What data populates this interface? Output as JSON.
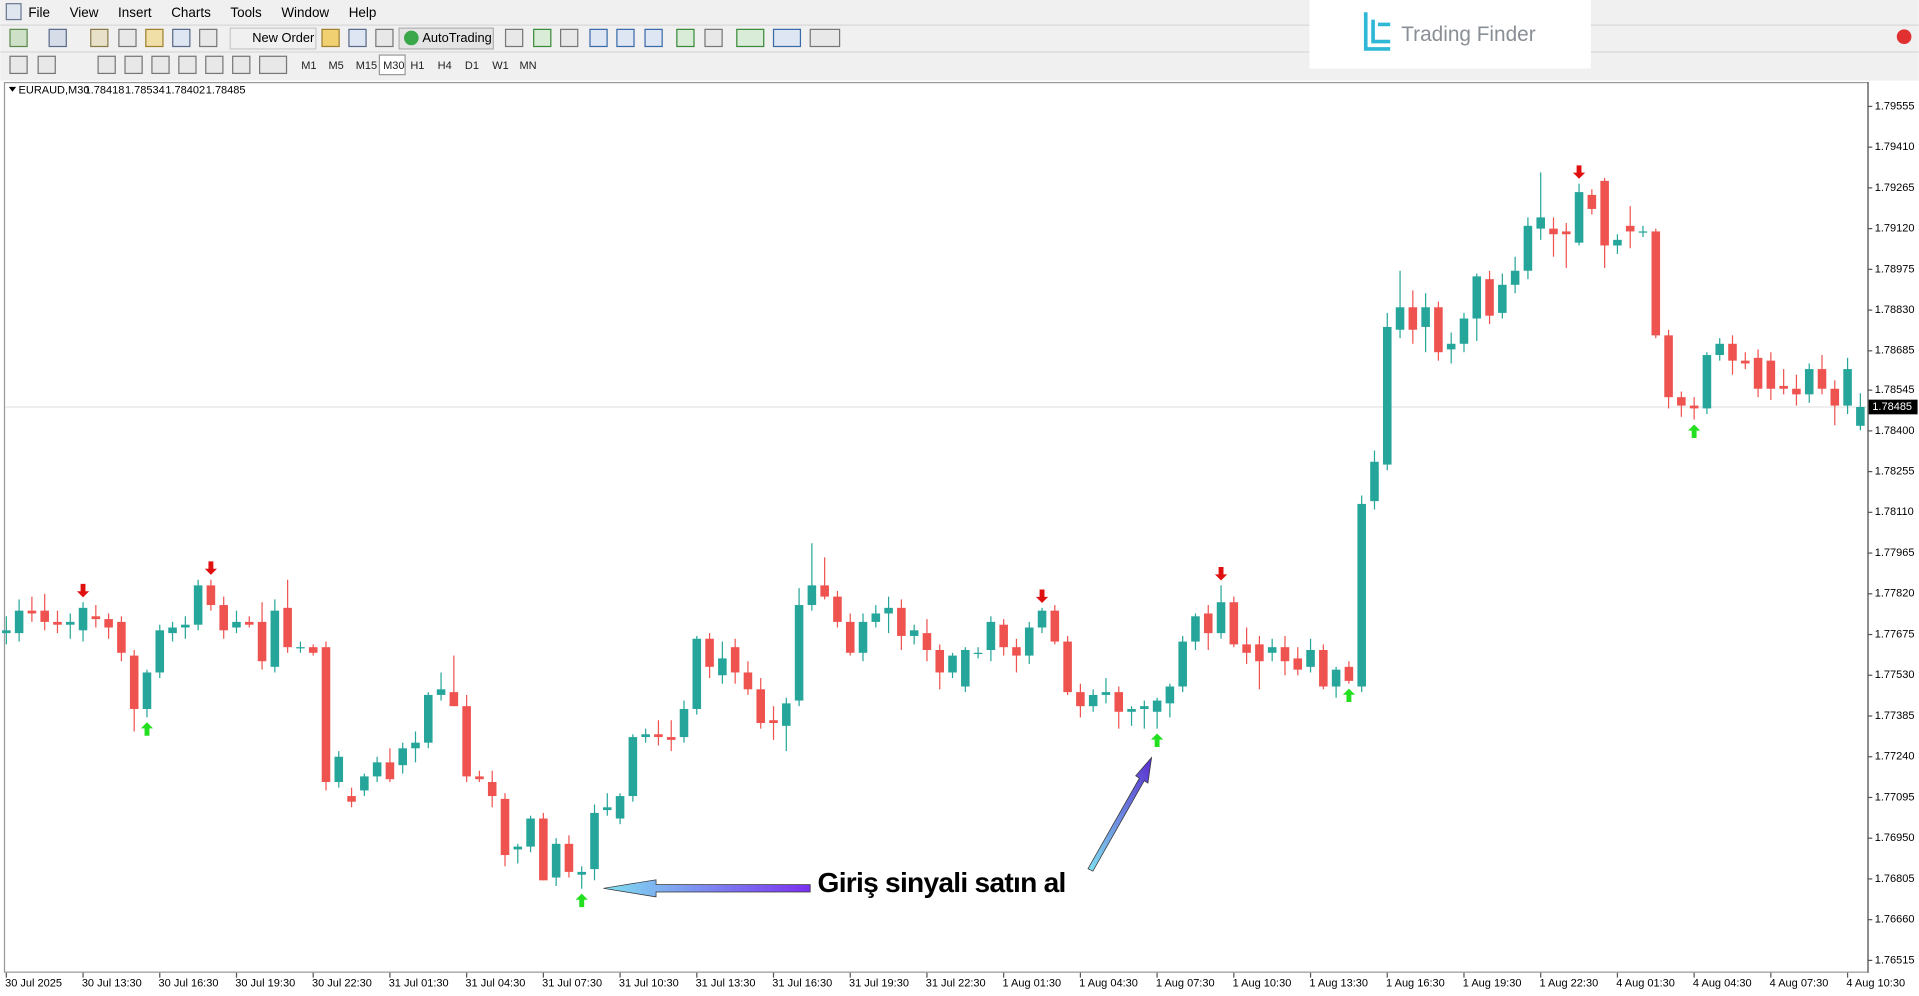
{
  "menu": [
    "File",
    "View",
    "Insert",
    "Charts",
    "Tools",
    "Window",
    "Help"
  ],
  "toolbar": {
    "buttons": [
      "New Order",
      "AutoTrading"
    ],
    "timeframes": [
      "M1",
      "M5",
      "M15",
      "M30",
      "H1",
      "H4",
      "D1",
      "W1",
      "MN"
    ]
  },
  "logo": "Trading Finder",
  "chart_data": {
    "type": "candlestick",
    "title": "EURAUD,M30",
    "annotation": "Giriş sinyali satın al",
    "up_color": "#26a69a",
    "down_color": "#ef5350",
    "buy_color": "#22e01f",
    "sell_color": "#e01010",
    "ylim": [
      1.76471,
      1.79642
    ],
    "yticks": [
      1.79555,
      {
        "value": 1.7941,
        "label": "1.79410"
      },
      1.79265,
      {
        "value": 1.7912,
        "label": "1.79120"
      },
      1.78975,
      {
        "value": 1.7883,
        "label": "1.78830"
      },
      1.78685,
      1.78545,
      {
        "value": 1.784,
        "label": "1.78400"
      },
      1.78255,
      {
        "value": 1.7811,
        "label": "1.78110"
      },
      1.77965,
      {
        "value": 1.7782,
        "label": "1.77820"
      },
      1.77675,
      {
        "value": 1.7753,
        "label": "1.77530"
      },
      1.77385,
      {
        "value": 1.7724,
        "label": "1.77240"
      },
      1.77095,
      {
        "value": 1.7695,
        "label": "1.76950"
      },
      1.76805,
      {
        "value": 1.7666,
        "label": "1.76660"
      },
      1.76515
    ],
    "categories": [
      "30 Jul 2025",
      null,
      null,
      null,
      null,
      null,
      "30 Jul 13:30",
      null,
      null,
      null,
      null,
      null,
      "30 Jul 16:30",
      null,
      null,
      null,
      null,
      null,
      "30 Jul 19:30",
      null,
      null,
      null,
      null,
      null,
      "30 Jul 22:30",
      null,
      null,
      null,
      null,
      null,
      "31 Jul 01:30",
      null,
      null,
      null,
      null,
      null,
      "31 Jul 04:30",
      null,
      null,
      null,
      null,
      null,
      "31 Jul 07:30",
      null,
      null,
      null,
      null,
      null,
      "31 Jul 10:30",
      null,
      null,
      null,
      null,
      null,
      "31 Jul 13:30",
      null,
      null,
      null,
      null,
      null,
      "31 Jul 16:30",
      null,
      null,
      null,
      null,
      null,
      "31 Jul 19:30",
      null,
      null,
      null,
      null,
      null,
      "31 Jul 22:30",
      null,
      null,
      null,
      null,
      null,
      "1 Aug 01:30",
      null,
      null,
      null,
      null,
      null,
      "1 Aug 04:30",
      null,
      null,
      null,
      null,
      null,
      "1 Aug 07:30",
      null,
      null,
      null,
      null,
      null,
      "1 Aug 10:30",
      null,
      null,
      null,
      null,
      null,
      "1 Aug 13:30",
      null,
      null,
      null,
      null,
      null,
      "1 Aug 16:30",
      null,
      null,
      null,
      null,
      null,
      "1 Aug 19:30",
      null,
      null,
      null,
      null,
      null,
      "1 Aug 22:30",
      null,
      null,
      null,
      null,
      null,
      "4 Aug 01:30",
      null,
      null,
      null,
      null,
      null,
      "4 Aug 04:30",
      null,
      null,
      null,
      null,
      null,
      "4 Aug 07:30",
      null,
      null,
      null,
      null,
      null,
      "4 Aug 10:30",
      null
    ],
    "ohlc": [
      [
        1.7768,
        1.7774,
        1.7764,
        1.7769
      ],
      [
        1.7768,
        1.778,
        1.7765,
        1.7776
      ],
      [
        1.7776,
        1.7781,
        1.7772,
        1.7775
      ],
      [
        1.7776,
        1.7782,
        1.7769,
        1.7772
      ],
      [
        1.7772,
        1.7776,
        1.7768,
        1.7771
      ],
      [
        1.7771,
        1.7775,
        1.7766,
        1.7772
      ],
      [
        1.7769,
        1.7779,
        1.7765,
        1.7777
      ],
      [
        1.7774,
        1.7778,
        1.777,
        1.7773
      ],
      [
        1.7773,
        1.7775,
        1.7766,
        1.777
      ],
      [
        1.7772,
        1.7774,
        1.7758,
        1.7761
      ],
      [
        1.776,
        1.7762,
        1.7733,
        1.7741
      ],
      [
        1.7741,
        1.7755,
        1.7738,
        1.7754
      ],
      [
        1.7754,
        1.7771,
        1.7752,
        1.7769
      ],
      [
        1.7768,
        1.7772,
        1.7765,
        1.777
      ],
      [
        1.777,
        1.7774,
        1.7766,
        1.7771
      ],
      [
        1.7771,
        1.7787,
        1.7769,
        1.7785
      ],
      [
        1.7785,
        1.7787,
        1.7776,
        1.7778
      ],
      [
        1.7778,
        1.7781,
        1.7766,
        1.7769
      ],
      [
        1.777,
        1.7776,
        1.7768,
        1.7772
      ],
      [
        1.7772,
        1.7774,
        1.777,
        1.7771
      ],
      [
        1.7772,
        1.7779,
        1.7755,
        1.7758
      ],
      [
        1.7756,
        1.778,
        1.7754,
        1.7776
      ],
      [
        1.7777,
        1.7787,
        1.7761,
        1.7763
      ],
      [
        1.7763,
        1.7765,
        1.7761,
        1.7763
      ],
      [
        1.7763,
        1.7764,
        1.776,
        1.7761
      ],
      [
        1.7763,
        1.7765,
        1.7712,
        1.7715
      ],
      [
        1.7715,
        1.7726,
        1.7713,
        1.7724
      ],
      [
        1.771,
        1.7713,
        1.7706,
        1.7708
      ],
      [
        1.7712,
        1.7718,
        1.771,
        1.7717
      ],
      [
        1.7717,
        1.7724,
        1.7715,
        1.7722
      ],
      [
        1.7722,
        1.7727,
        1.7715,
        1.7716
      ],
      [
        1.7721,
        1.7729,
        1.7718,
        1.7727
      ],
      [
        1.7727,
        1.7733,
        1.7722,
        1.7729
      ],
      [
        1.7729,
        1.7747,
        1.7727,
        1.7746
      ],
      [
        1.7746,
        1.7754,
        1.7744,
        1.7748
      ],
      [
        1.7747,
        1.776,
        1.7742,
        1.7742
      ],
      [
        1.7742,
        1.7746,
        1.7715,
        1.7717
      ],
      [
        1.7717,
        1.7719,
        1.7715,
        1.7716
      ],
      [
        1.7715,
        1.7719,
        1.7706,
        1.771
      ],
      [
        1.7709,
        1.7711,
        1.7685,
        1.7689
      ],
      [
        1.7691,
        1.7693,
        1.7686,
        1.7692
      ],
      [
        1.7692,
        1.7703,
        1.769,
        1.7702
      ],
      [
        1.7702,
        1.7704,
        1.768,
        1.768
      ],
      [
        1.7681,
        1.7695,
        1.7678,
        1.7693
      ],
      [
        1.7693,
        1.7696,
        1.7681,
        1.7683
      ],
      [
        1.7682,
        1.7685,
        1.7677,
        1.7683
      ],
      [
        1.7684,
        1.7707,
        1.768,
        1.7704
      ],
      [
        1.7705,
        1.7711,
        1.7703,
        1.7706
      ],
      [
        1.7702,
        1.7711,
        1.77,
        1.771
      ],
      [
        1.771,
        1.7732,
        1.7708,
        1.7731
      ],
      [
        1.7731,
        1.7734,
        1.7729,
        1.7732
      ],
      [
        1.7732,
        1.7737,
        1.7728,
        1.7731
      ],
      [
        1.7731,
        1.7737,
        1.7726,
        1.773
      ],
      [
        1.7731,
        1.7744,
        1.7729,
        1.7741
      ],
      [
        1.7741,
        1.7767,
        1.7739,
        1.7766
      ],
      [
        1.7766,
        1.7768,
        1.7752,
        1.7756
      ],
      [
        1.7753,
        1.7765,
        1.775,
        1.7759
      ],
      [
        1.7763,
        1.7766,
        1.775,
        1.7754
      ],
      [
        1.7754,
        1.7758,
        1.7746,
        1.7748
      ],
      [
        1.7748,
        1.7752,
        1.7734,
        1.7736
      ],
      [
        1.7737,
        1.7742,
        1.773,
        1.7736
      ],
      [
        1.7735,
        1.7745,
        1.7726,
        1.7743
      ],
      [
        1.7744,
        1.7784,
        1.7742,
        1.7778
      ],
      [
        1.7778,
        1.78,
        1.7776,
        1.7785
      ],
      [
        1.7785,
        1.7795,
        1.778,
        1.7781
      ],
      [
        1.7781,
        1.7783,
        1.777,
        1.7772
      ],
      [
        1.7772,
        1.7775,
        1.776,
        1.7761
      ],
      [
        1.7761,
        1.7775,
        1.7758,
        1.7772
      ],
      [
        1.7772,
        1.7778,
        1.777,
        1.7775
      ],
      [
        1.7775,
        1.7781,
        1.7768,
        1.7777
      ],
      [
        1.7777,
        1.778,
        1.7762,
        1.7767
      ],
      [
        1.7767,
        1.7771,
        1.7764,
        1.7769
      ],
      [
        1.7768,
        1.7773,
        1.7758,
        1.7762
      ],
      [
        1.7762,
        1.7764,
        1.7748,
        1.7754
      ],
      [
        1.7754,
        1.7761,
        1.7752,
        1.776
      ],
      [
        1.7749,
        1.7763,
        1.7747,
        1.7762
      ],
      [
        1.7761,
        1.7763,
        1.7759,
        1.7761
      ],
      [
        1.7762,
        1.7774,
        1.7758,
        1.7772
      ],
      [
        1.7771,
        1.7773,
        1.776,
        1.7763
      ],
      [
        1.7763,
        1.7766,
        1.7754,
        1.776
      ],
      [
        1.776,
        1.7772,
        1.7757,
        1.777
      ],
      [
        1.777,
        1.7777,
        1.7768,
        1.7776
      ],
      [
        1.7776,
        1.7778,
        1.7764,
        1.7765
      ],
      [
        1.7765,
        1.7767,
        1.7746,
        1.7747
      ],
      [
        1.7747,
        1.775,
        1.7738,
        1.7742
      ],
      [
        1.7742,
        1.7748,
        1.774,
        1.7746
      ],
      [
        1.7746,
        1.7752,
        1.7743,
        1.7747
      ],
      [
        1.7747,
        1.7749,
        1.7734,
        1.774
      ],
      [
        1.774,
        1.7742,
        1.7735,
        1.7741
      ],
      [
        1.7741,
        1.7744,
        1.7734,
        1.7742
      ],
      [
        1.774,
        1.7745,
        1.7734,
        1.7744
      ],
      [
        1.7743,
        1.775,
        1.7738,
        1.7749
      ],
      [
        1.7749,
        1.7767,
        1.7747,
        1.7765
      ],
      [
        1.7765,
        1.7775,
        1.7762,
        1.7774
      ],
      [
        1.7775,
        1.7778,
        1.7762,
        1.7768
      ],
      [
        1.7768,
        1.7785,
        1.7766,
        1.7779
      ],
      [
        1.7779,
        1.7781,
        1.7763,
        1.7764
      ],
      [
        1.7764,
        1.777,
        1.7757,
        1.7761
      ],
      [
        1.7764,
        1.7767,
        1.7748,
        1.7758
      ],
      [
        1.7761,
        1.7766,
        1.7758,
        1.7763
      ],
      [
        1.7763,
        1.7767,
        1.7753,
        1.7758
      ],
      [
        1.7759,
        1.7763,
        1.7753,
        1.7755
      ],
      [
        1.7756,
        1.7766,
        1.7754,
        1.7762
      ],
      [
        1.7762,
        1.7764,
        1.7748,
        1.7749
      ],
      [
        1.7749,
        1.7756,
        1.7745,
        1.7755
      ],
      [
        1.7756,
        1.7758,
        1.775,
        1.7751
      ],
      [
        1.7749,
        1.7817,
        1.7747,
        1.7814
      ],
      [
        1.7815,
        1.7833,
        1.7812,
        1.7829
      ],
      [
        1.7828,
        1.7882,
        1.7826,
        1.7877
      ],
      [
        1.7876,
        1.7897,
        1.7873,
        1.7884
      ],
      [
        1.7884,
        1.789,
        1.7871,
        1.7876
      ],
      [
        1.7877,
        1.7889,
        1.7868,
        1.7884
      ],
      [
        1.7884,
        1.7886,
        1.7865,
        1.7868
      ],
      [
        1.7869,
        1.7875,
        1.7864,
        1.7871
      ],
      [
        1.7871,
        1.7882,
        1.7868,
        1.788
      ],
      [
        1.788,
        1.7896,
        1.7872,
        1.7895
      ],
      [
        1.7894,
        1.7897,
        1.7878,
        1.7881
      ],
      [
        1.7882,
        1.7896,
        1.788,
        1.7892
      ],
      [
        1.7892,
        1.7902,
        1.7889,
        1.7897
      ],
      [
        1.7897,
        1.7916,
        1.7894,
        1.7913
      ],
      [
        1.7912,
        1.7932,
        1.7908,
        1.7916
      ],
      [
        1.7912,
        1.7916,
        1.7902,
        1.791
      ],
      [
        1.7911,
        1.7914,
        1.7898,
        1.791
      ],
      [
        1.7907,
        1.7928,
        1.7906,
        1.7925
      ],
      [
        1.7924,
        1.7926,
        1.7917,
        1.7919
      ],
      [
        1.7929,
        1.793,
        1.7898,
        1.7906
      ],
      [
        1.7906,
        1.791,
        1.7903,
        1.7908
      ],
      [
        1.7913,
        1.792,
        1.7905,
        1.7911
      ],
      [
        1.7911,
        1.7913,
        1.7909,
        1.7911
      ],
      [
        1.7911,
        1.7912,
        1.7873,
        1.7874
      ],
      [
        1.7874,
        1.7876,
        1.7848,
        1.7852
      ],
      [
        1.7852,
        1.7854,
        1.7845,
        1.7849
      ],
      [
        1.7849,
        1.7852,
        1.7844,
        1.7848
      ],
      [
        1.7848,
        1.7868,
        1.7846,
        1.7867
      ],
      [
        1.7867,
        1.7873,
        1.7865,
        1.7871
      ],
      [
        1.7871,
        1.7874,
        1.786,
        1.7865
      ],
      [
        1.7865,
        1.7868,
        1.7862,
        1.7864
      ],
      [
        1.7866,
        1.7869,
        1.7852,
        1.7855
      ],
      [
        1.7865,
        1.7868,
        1.7851,
        1.7855
      ],
      [
        1.7856,
        1.7862,
        1.7853,
        1.7855
      ],
      [
        1.7855,
        1.786,
        1.7849,
        1.7853
      ],
      [
        1.7853,
        1.7864,
        1.785,
        1.7862
      ],
      [
        1.7862,
        1.7867,
        1.7853,
        1.7855
      ],
      [
        1.7855,
        1.7858,
        1.7842,
        1.7849
      ],
      [
        1.7849,
        1.7866,
        1.7846,
        1.7862
      ],
      [
        1.78418,
        1.78534,
        1.78402,
        1.78485
      ]
    ],
    "buy_signals": [
      11,
      45,
      90,
      105,
      132
    ],
    "sell_signals": [
      6,
      16,
      81,
      95,
      123
    ]
  }
}
